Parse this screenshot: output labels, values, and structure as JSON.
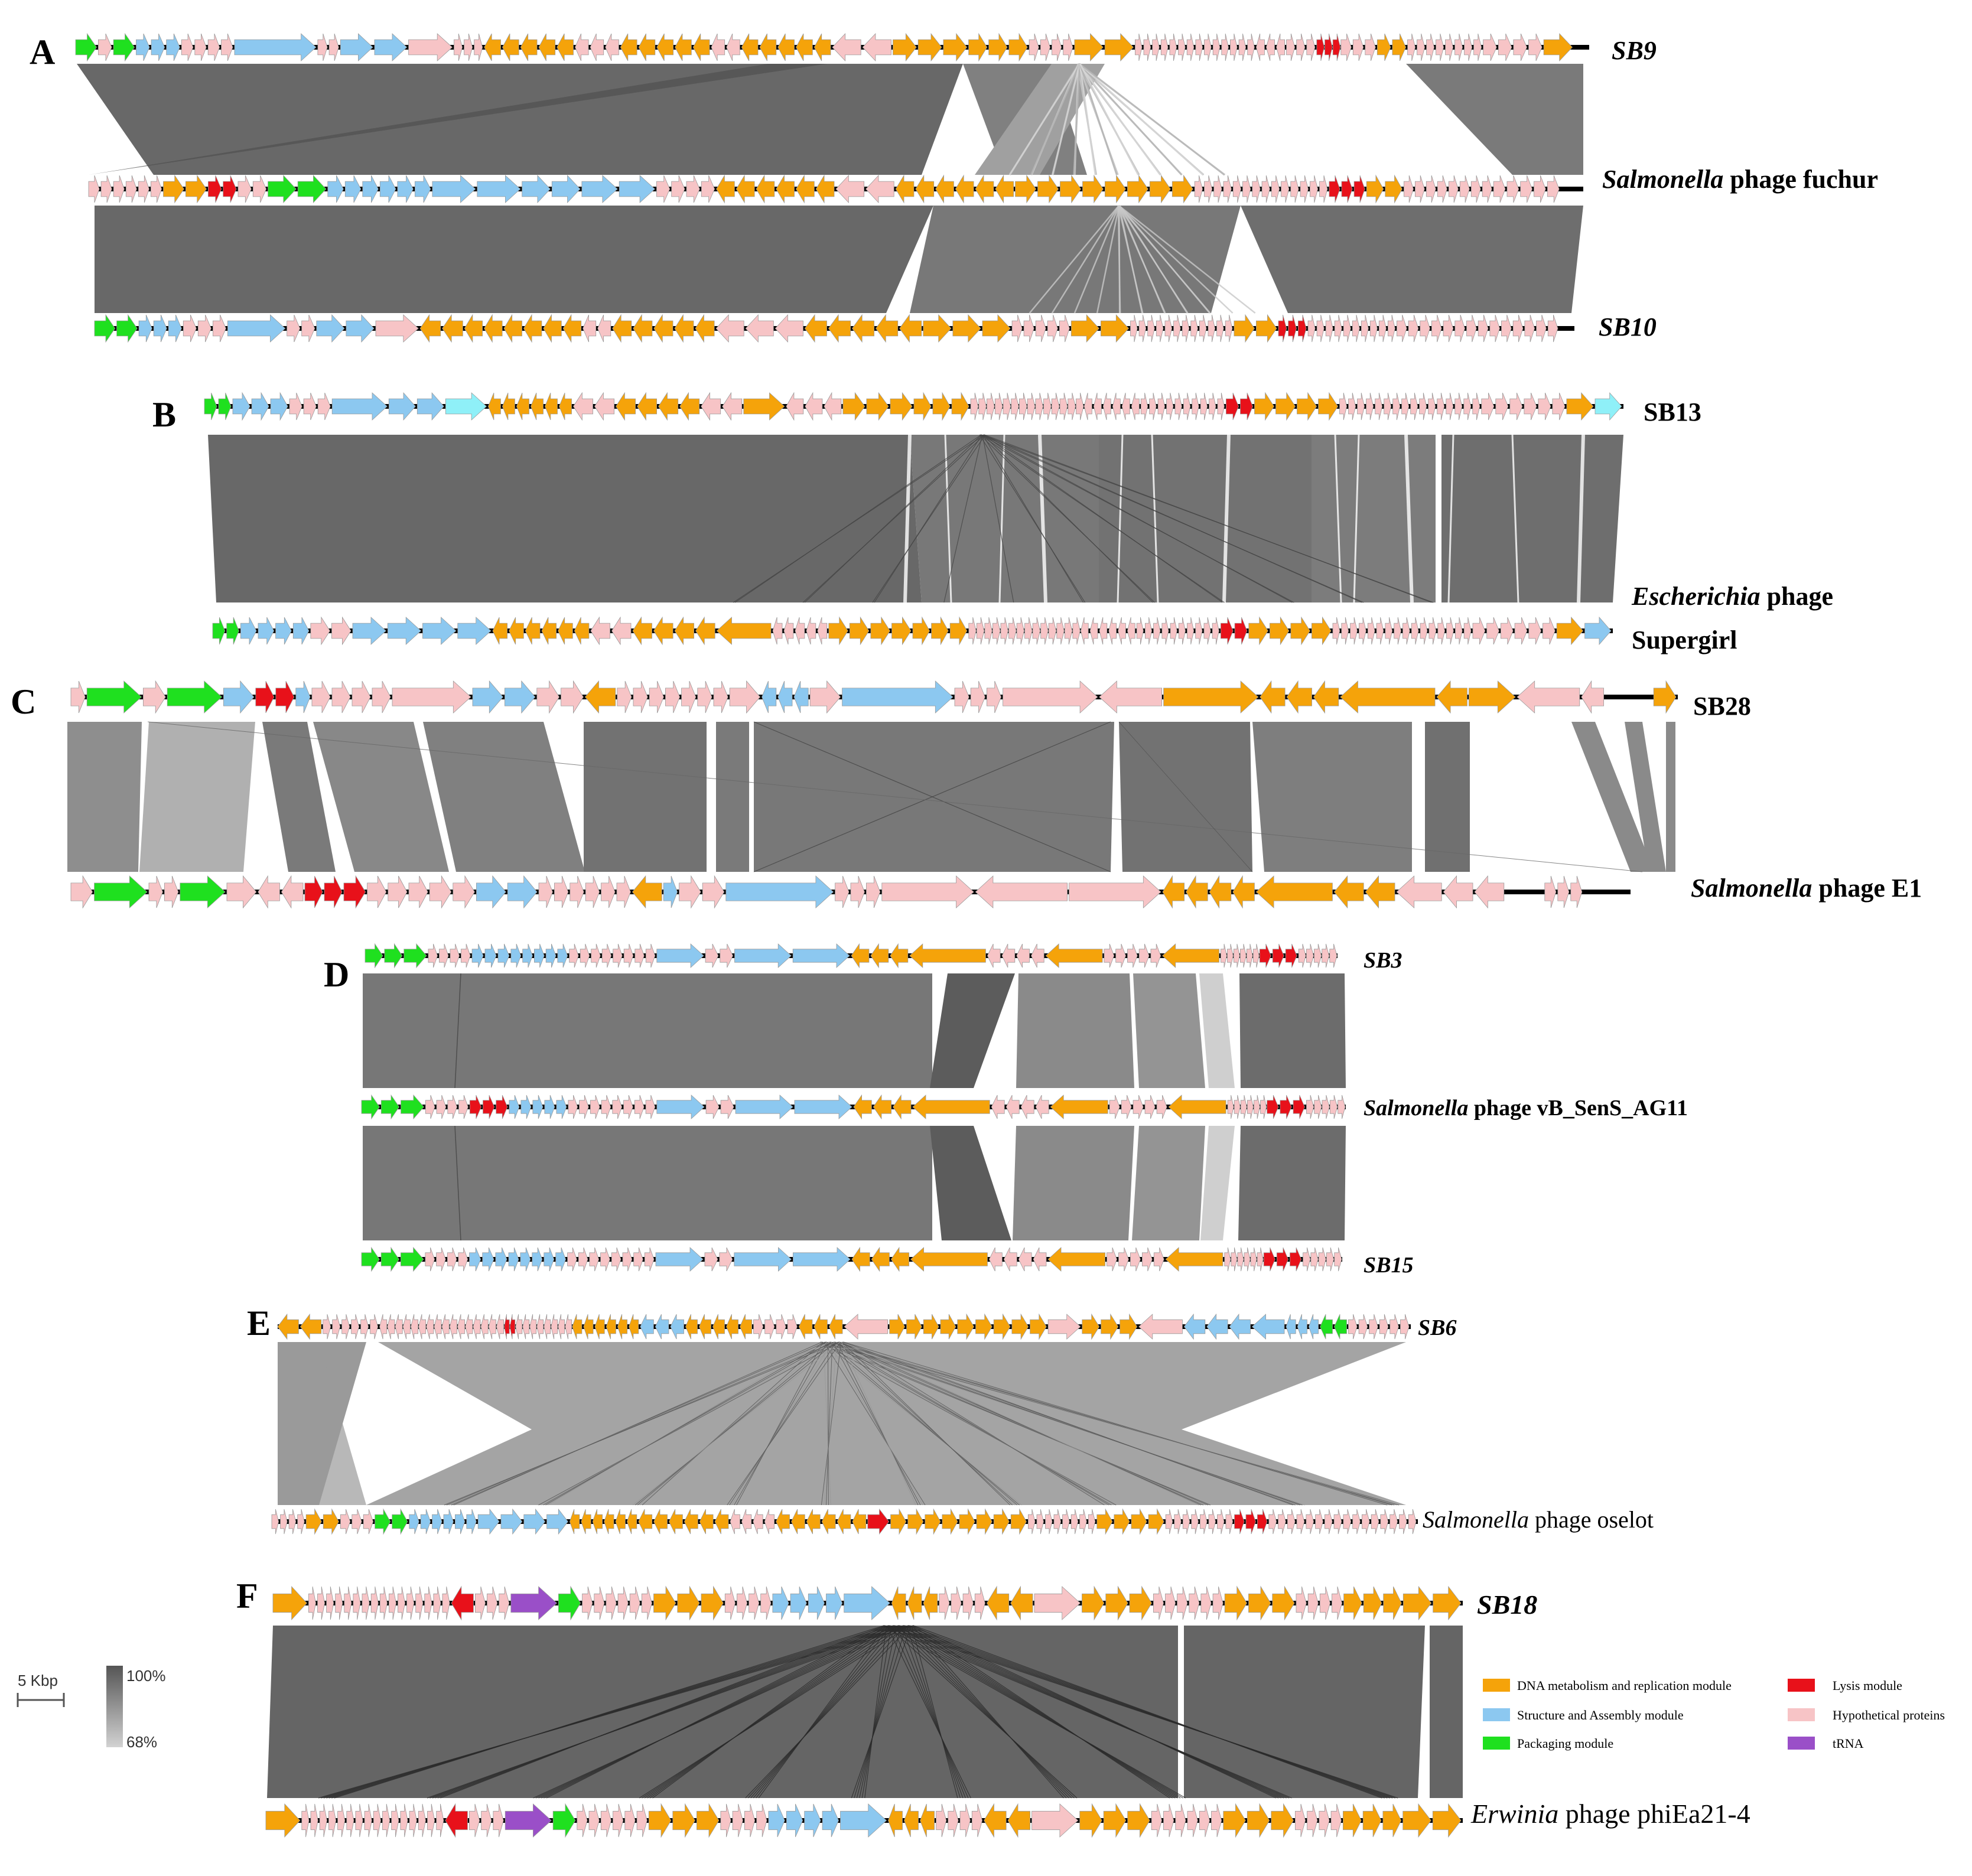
{
  "colors": {
    "dna": "#f5a30a",
    "structure": "#8cc8f0",
    "packaging": "#1fe01f",
    "lysis": "#e8111a",
    "hypothetical": "#f7c4c6",
    "trna": "#9a4fc8",
    "other_light_blue": "#8ff0f8",
    "backbone": "#000000",
    "identity_high": "#606060",
    "identity_low": "#c4c4c4"
  },
  "panels": [
    {
      "letter": "A",
      "genomes": [
        {
          "name_italic": "SB9",
          "name_plain": ""
        },
        {
          "name_italic": "Salmonella",
          "name_plain": " phage fuchur"
        },
        {
          "name_italic": "SB10",
          "name_plain": ""
        }
      ]
    },
    {
      "letter": "B",
      "genomes": [
        {
          "name_italic": "",
          "name_plain": "SB13"
        },
        {
          "name_italic": "Escherichia",
          "name_plain": " phage",
          "name_line2": "Supergirl"
        }
      ]
    },
    {
      "letter": "C",
      "genomes": [
        {
          "name_italic": "",
          "name_plain": "SB28"
        },
        {
          "name_italic": "Salmonella",
          "name_plain": " phage E1"
        }
      ]
    },
    {
      "letter": "D",
      "genomes": [
        {
          "name_italic": "SB3",
          "name_plain": ""
        },
        {
          "name_italic": "Salmonella",
          "name_plain": " phage vB_SenS_AG11"
        },
        {
          "name_italic": "SB15",
          "name_plain": ""
        }
      ]
    },
    {
      "letter": "E",
      "genomes": [
        {
          "name_italic": "SB6",
          "name_plain": ""
        },
        {
          "name_italic": "Salmonella",
          "name_plain": " phage oselot"
        }
      ]
    },
    {
      "letter": "F",
      "genomes": [
        {
          "name_italic": "SB18",
          "name_plain": ""
        },
        {
          "name_italic": "Erwinia",
          "name_plain": " phage phiEa21-4"
        }
      ]
    }
  ],
  "scale_bar": {
    "label": "5 Kbp"
  },
  "identity_scale": {
    "max_label": "100%",
    "min_label": "68%"
  },
  "legend": [
    {
      "label": "DNA metabolism and replication module",
      "color_key": "dna"
    },
    {
      "label": "Structure and Assembly module",
      "color_key": "structure"
    },
    {
      "label": "Packaging module",
      "color_key": "packaging"
    },
    {
      "label": "Lysis module",
      "color_key": "lysis"
    },
    {
      "label": "Hypothetical proteins",
      "color_key": "hypothetical"
    },
    {
      "label": "tRNA",
      "color_key": "trna"
    }
  ]
}
